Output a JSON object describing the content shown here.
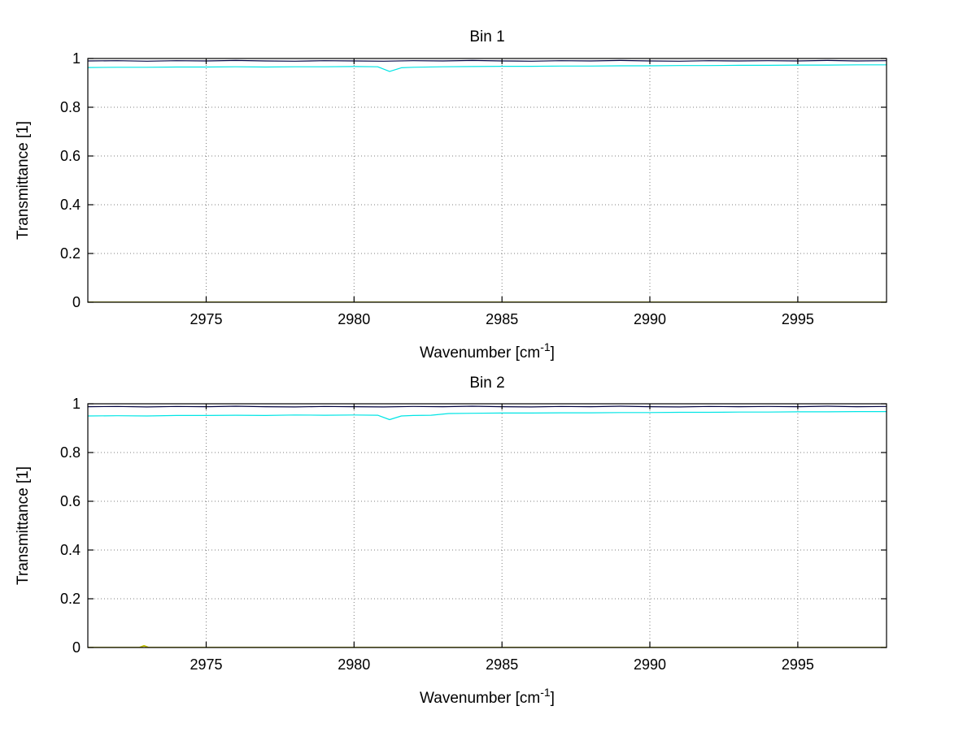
{
  "canvas": {
    "background": "#ffffff"
  },
  "colors": {
    "axis": "#000000",
    "grid": "#7f7f7f",
    "text": "#000000"
  },
  "chart_data": [
    {
      "type": "line",
      "title": "Bin 1",
      "ylabel": "Transmittance [1]",
      "xlabel": {
        "prefix": "Wavenumber [cm",
        "sup": "-1",
        "suffix": "]"
      },
      "xlim": [
        2971,
        2998
      ],
      "ylim": [
        0,
        1
      ],
      "x_ticks": [
        2975,
        2980,
        2985,
        2990,
        2995
      ],
      "x_tick_labels": [
        "2975",
        "2980",
        "2985",
        "2990",
        "2995"
      ],
      "y_ticks": [
        0,
        0.2,
        0.4,
        0.6,
        0.8,
        1
      ],
      "y_tick_labels": [
        "0",
        "0.2",
        "0.4",
        "0.6",
        "0.8",
        "1"
      ],
      "grid": true,
      "legend": null,
      "series": [
        {
          "name": "upper-spectrum-darkblue",
          "color": "#000040",
          "width": 1.2,
          "points": [
            [
              2971,
              0.99
            ],
            [
              2972,
              0.991
            ],
            [
              2973,
              0.989
            ],
            [
              2974,
              0.991
            ],
            [
              2975,
              0.99
            ],
            [
              2976,
              0.992
            ],
            [
              2977,
              0.99
            ],
            [
              2978,
              0.989
            ],
            [
              2979,
              0.991
            ],
            [
              2980,
              0.99
            ],
            [
              2981,
              0.989
            ],
            [
              2982,
              0.991
            ],
            [
              2983,
              0.99
            ],
            [
              2984,
              0.992
            ],
            [
              2985,
              0.99
            ],
            [
              2986,
              0.989
            ],
            [
              2987,
              0.991
            ],
            [
              2988,
              0.99
            ],
            [
              2989,
              0.992
            ],
            [
              2990,
              0.99
            ],
            [
              2991,
              0.989
            ],
            [
              2992,
              0.991
            ],
            [
              2993,
              0.99
            ],
            [
              2994,
              0.991
            ],
            [
              2995,
              0.99
            ],
            [
              2996,
              0.992
            ],
            [
              2997,
              0.99
            ],
            [
              2998,
              0.991
            ]
          ]
        },
        {
          "name": "lower-spectrum-cyan",
          "color": "#00E5E5",
          "width": 1.2,
          "points": [
            [
              2971,
              0.963
            ],
            [
              2972,
              0.964
            ],
            [
              2973,
              0.964
            ],
            [
              2974,
              0.965
            ],
            [
              2975,
              0.965
            ],
            [
              2976,
              0.966
            ],
            [
              2977,
              0.965
            ],
            [
              2978,
              0.966
            ],
            [
              2979,
              0.966
            ],
            [
              2980,
              0.967
            ],
            [
              2980.8,
              0.966
            ],
            [
              2981.2,
              0.947
            ],
            [
              2981.6,
              0.962
            ],
            [
              2982,
              0.964
            ],
            [
              2983,
              0.966
            ],
            [
              2984,
              0.967
            ],
            [
              2985,
              0.968
            ],
            [
              2986,
              0.968
            ],
            [
              2987,
              0.969
            ],
            [
              2988,
              0.969
            ],
            [
              2989,
              0.97
            ],
            [
              2990,
              0.97
            ],
            [
              2991,
              0.971
            ],
            [
              2992,
              0.971
            ],
            [
              2993,
              0.972
            ],
            [
              2994,
              0.972
            ],
            [
              2995,
              0.973
            ],
            [
              2996,
              0.973
            ],
            [
              2997,
              0.974
            ],
            [
              2998,
              0.974
            ]
          ]
        },
        {
          "name": "zero-baseline-yellow",
          "color": "#BFBF00",
          "width": 1.8,
          "points": [
            [
              2971,
              0
            ],
            [
              2998,
              0
            ]
          ]
        }
      ]
    },
    {
      "type": "line",
      "title": "Bin 2",
      "ylabel": "Transmittance [1]",
      "xlabel": {
        "prefix": "Wavenumber [cm",
        "sup": "-1",
        "suffix": "]"
      },
      "xlim": [
        2971,
        2998
      ],
      "ylim": [
        0,
        1
      ],
      "x_ticks": [
        2975,
        2980,
        2985,
        2990,
        2995
      ],
      "x_tick_labels": [
        "2975",
        "2980",
        "2985",
        "2990",
        "2995"
      ],
      "y_ticks": [
        0,
        0.2,
        0.4,
        0.6,
        0.8,
        1
      ],
      "y_tick_labels": [
        "0",
        "0.2",
        "0.4",
        "0.6",
        "0.8",
        "1"
      ],
      "grid": true,
      "legend": null,
      "series": [
        {
          "name": "upper-spectrum-darkblue",
          "color": "#000040",
          "width": 1.2,
          "points": [
            [
              2971,
              0.988
            ],
            [
              2972,
              0.989
            ],
            [
              2973,
              0.987
            ],
            [
              2974,
              0.989
            ],
            [
              2975,
              0.988
            ],
            [
              2976,
              0.99
            ],
            [
              2977,
              0.988
            ],
            [
              2978,
              0.987
            ],
            [
              2979,
              0.989
            ],
            [
              2980,
              0.988
            ],
            [
              2981,
              0.987
            ],
            [
              2982,
              0.989
            ],
            [
              2983,
              0.988
            ],
            [
              2984,
              0.99
            ],
            [
              2985,
              0.988
            ],
            [
              2986,
              0.987
            ],
            [
              2987,
              0.989
            ],
            [
              2988,
              0.988
            ],
            [
              2989,
              0.99
            ],
            [
              2990,
              0.988
            ],
            [
              2991,
              0.987
            ],
            [
              2992,
              0.989
            ],
            [
              2993,
              0.988
            ],
            [
              2994,
              0.989
            ],
            [
              2995,
              0.988
            ],
            [
              2996,
              0.99
            ],
            [
              2997,
              0.988
            ],
            [
              2998,
              0.989
            ]
          ]
        },
        {
          "name": "lower-spectrum-cyan",
          "color": "#00E5E5",
          "width": 1.2,
          "points": [
            [
              2971,
              0.95
            ],
            [
              2972,
              0.951
            ],
            [
              2973,
              0.95
            ],
            [
              2974,
              0.952
            ],
            [
              2975,
              0.952
            ],
            [
              2976,
              0.953
            ],
            [
              2977,
              0.952
            ],
            [
              2978,
              0.954
            ],
            [
              2979,
              0.953
            ],
            [
              2980,
              0.954
            ],
            [
              2980.8,
              0.953
            ],
            [
              2981.2,
              0.935
            ],
            [
              2981.6,
              0.95
            ],
            [
              2982,
              0.952
            ],
            [
              2982.6,
              0.953
            ],
            [
              2983.2,
              0.96
            ],
            [
              2984,
              0.961
            ],
            [
              2985,
              0.962
            ],
            [
              2986,
              0.962
            ],
            [
              2987,
              0.963
            ],
            [
              2988,
              0.963
            ],
            [
              2989,
              0.964
            ],
            [
              2990,
              0.964
            ],
            [
              2991,
              0.965
            ],
            [
              2992,
              0.965
            ],
            [
              2993,
              0.966
            ],
            [
              2994,
              0.966
            ],
            [
              2995,
              0.967
            ],
            [
              2996,
              0.967
            ],
            [
              2997,
              0.968
            ],
            [
              2998,
              0.968
            ]
          ]
        },
        {
          "name": "zero-baseline-yellow",
          "color": "#BFBF00",
          "width": 1.8,
          "points": [
            [
              2971,
              0
            ],
            [
              2972.75,
              0
            ],
            [
              2972.9,
              0.007
            ],
            [
              2973.05,
              0
            ],
            [
              2998,
              0
            ]
          ]
        }
      ]
    }
  ]
}
